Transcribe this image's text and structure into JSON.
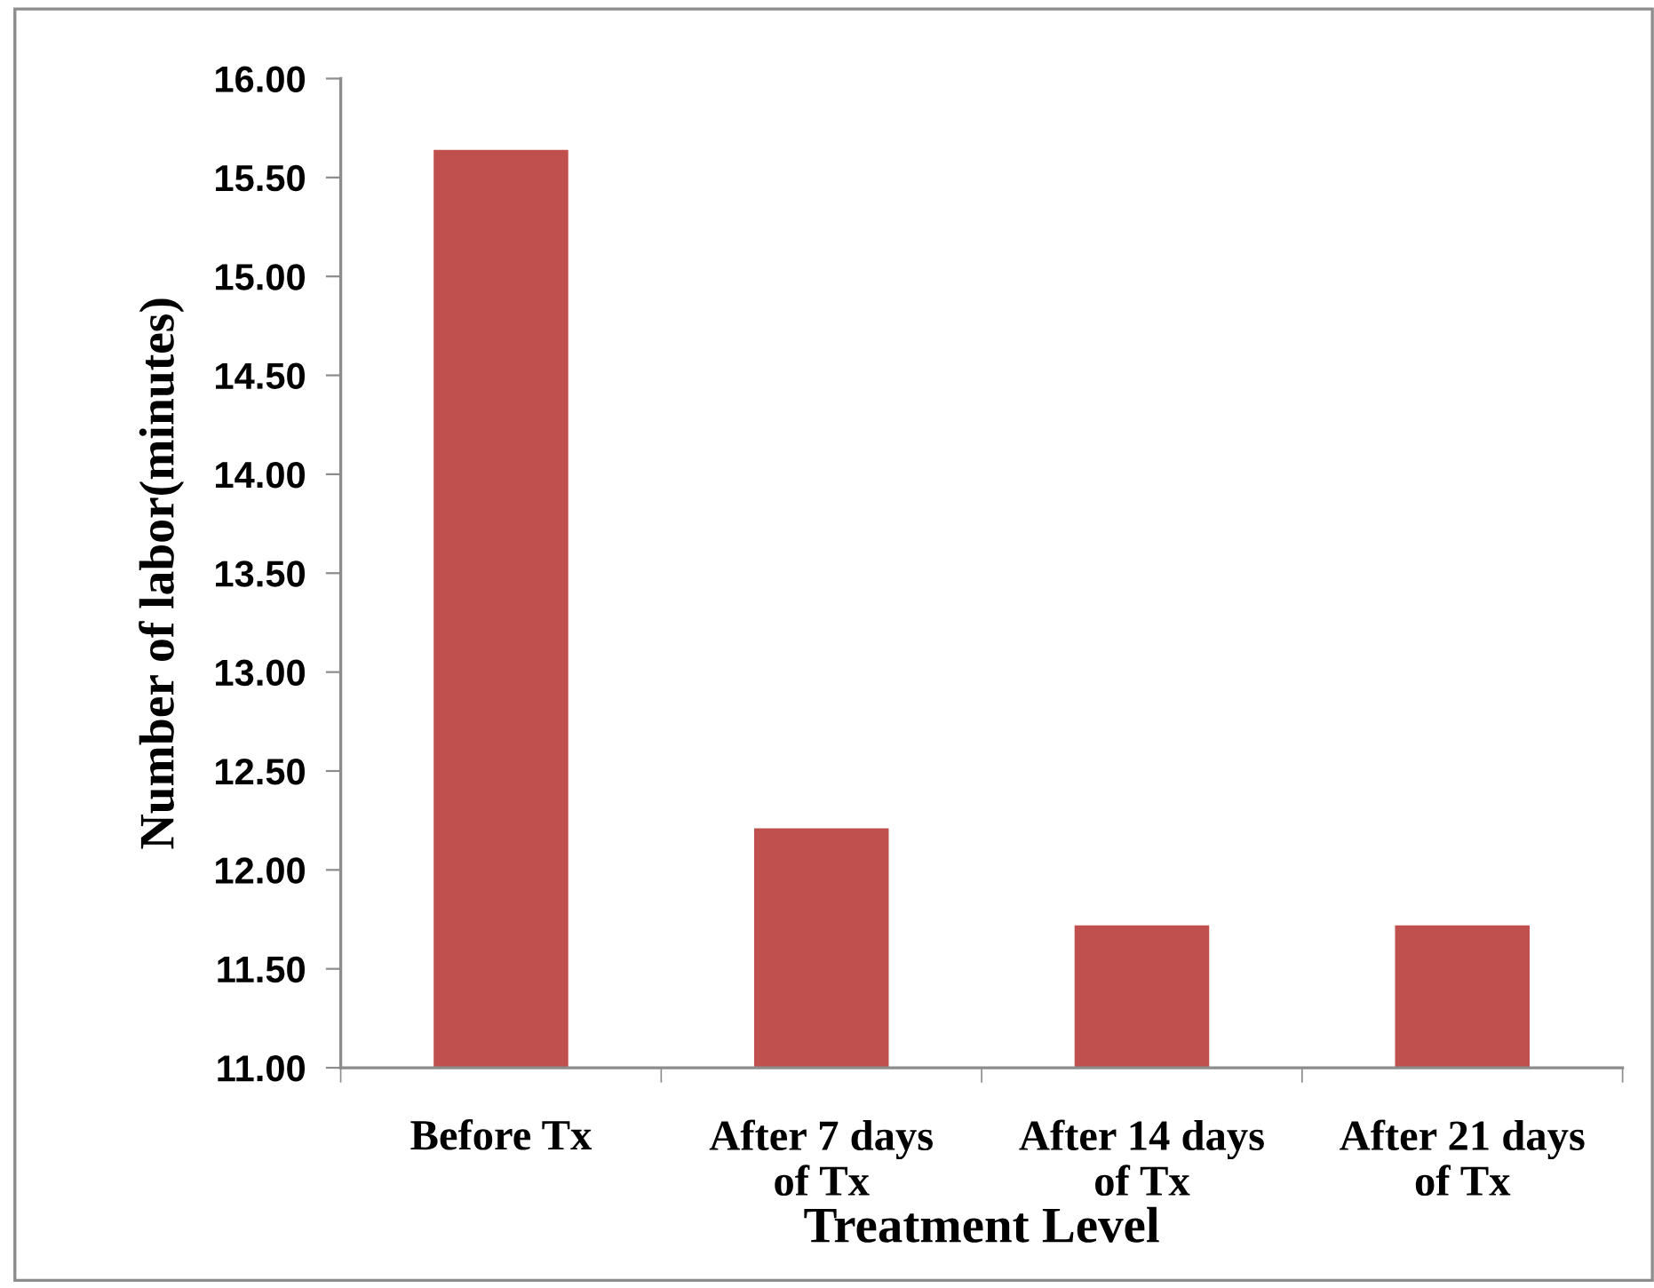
{
  "chart_data": {
    "type": "bar",
    "xlabel": "Treatment Level",
    "ylabel": "Number of labor(minutes)",
    "categories": [
      "Before Tx",
      "After 7 days\nof Tx",
      "After 14 days\nof Tx",
      "After 21 days\nof Tx"
    ],
    "series": [
      {
        "color": "#c0504d",
        "values": [
          15.64,
          12.21,
          11.72,
          11.72
        ]
      }
    ],
    "ylim": [
      11,
      16
    ],
    "yticks": [
      {
        "value": 11,
        "label": "11.00"
      },
      {
        "value": 11.5,
        "label": "11.50"
      },
      {
        "value": 12,
        "label": "12.00"
      },
      {
        "value": 12.5,
        "label": "12.50"
      },
      {
        "value": 13,
        "label": "13.00"
      },
      {
        "value": 13.5,
        "label": "13.50"
      },
      {
        "value": 14,
        "label": "14.00"
      },
      {
        "value": 14.5,
        "label": "14.50"
      },
      {
        "value": 15,
        "label": "15.00"
      },
      {
        "value": 15.5,
        "label": "15.50"
      },
      {
        "value": 16,
        "label": "16.00"
      }
    ],
    "grid": false,
    "legend": false
  }
}
